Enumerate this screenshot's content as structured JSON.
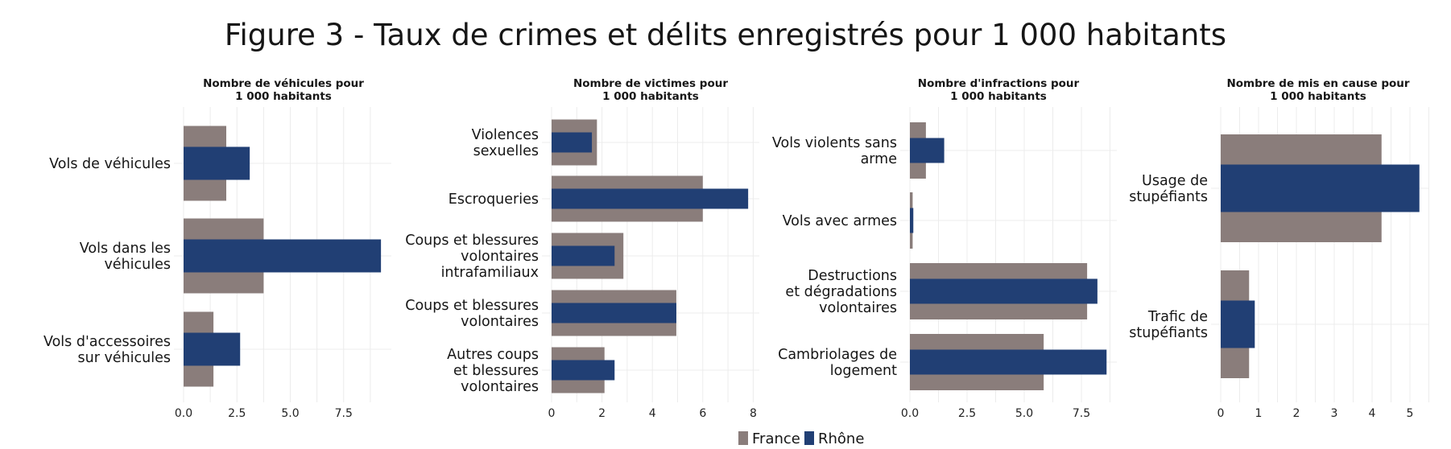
{
  "chart_data": {
    "type": "bar",
    "orientation": "horizontal",
    "title": "Figure 3 - Taux de crimes et délits enregistrés pour 1 000 habitants",
    "colors": {
      "France": "#8a7d7b",
      "Rhône": "#213f74"
    },
    "legend": {
      "position": "bottom",
      "entries": [
        "France",
        "Rhône"
      ]
    },
    "grid": true,
    "panels": [
      {
        "title": [
          "Nombre de véhicules pour",
          "1 000 habitants"
        ],
        "xlim": [
          0,
          9.75
        ],
        "ticks": [
          0,
          2.5,
          5,
          7.5
        ],
        "tick_labels": [
          "0.0",
          "2.5",
          "5.0",
          "7.5"
        ],
        "categories": [
          {
            "label": [
              "Vols de véhicules"
            ],
            "France": 2.0,
            "Rhône": 3.1
          },
          {
            "label": [
              "Vols dans les",
              "véhicules"
            ],
            "France": 3.75,
            "Rhône": 9.25
          },
          {
            "label": [
              "Vols d'accessoires",
              "sur véhicules"
            ],
            "France": 1.4,
            "Rhône": 2.65
          }
        ]
      },
      {
        "title": [
          "Nombre de victimes pour",
          "1 000 habitants"
        ],
        "xlim": [
          0,
          8.2
        ],
        "ticks": [
          0,
          2,
          4,
          6,
          8
        ],
        "tick_labels": [
          "0",
          "2",
          "4",
          "6",
          "8"
        ],
        "categories": [
          {
            "label": [
              "Violences",
              "sexuelles"
            ],
            "France": 1.8,
            "Rhône": 1.6
          },
          {
            "label": [
              "Escroqueries"
            ],
            "France": 6.0,
            "Rhône": 7.8
          },
          {
            "label": [
              "Coups et blessures",
              "volontaires",
              "intrafamiliaux"
            ],
            "France": 2.85,
            "Rhône": 2.5
          },
          {
            "label": [
              "Coups et blessures",
              "volontaires"
            ],
            "France": 4.95,
            "Rhône": 4.95
          },
          {
            "label": [
              "Autres coups",
              "et blessures",
              "volontaires"
            ],
            "France": 2.1,
            "Rhône": 2.5
          }
        ]
      },
      {
        "title": [
          "Nombre d'infractions pour",
          "1 000 habitants"
        ],
        "xlim": [
          0,
          9.0
        ],
        "ticks": [
          0,
          2.5,
          5,
          7.5
        ],
        "tick_labels": [
          "0.0",
          "2.5",
          "5.0",
          "7.5"
        ],
        "categories": [
          {
            "label": [
              "Vols violents sans",
              "arme"
            ],
            "France": 0.7,
            "Rhône": 1.5
          },
          {
            "label": [
              "Vols avec armes"
            ],
            "France": 0.12,
            "Rhône": 0.15
          },
          {
            "label": [
              "Destructions",
              "et dégradations",
              "volontaires"
            ],
            "France": 7.75,
            "Rhône": 8.2
          },
          {
            "label": [
              "Cambriolages de",
              "logement"
            ],
            "France": 5.85,
            "Rhône": 8.6
          }
        ]
      },
      {
        "title": [
          "Nombre de mis en cause pour",
          "1 000 habitants"
        ],
        "xlim": [
          0,
          5.5
        ],
        "ticks": [
          0,
          1,
          2,
          3,
          4,
          5
        ],
        "tick_labels": [
          "0",
          "1",
          "2",
          "3",
          "4",
          "5"
        ],
        "categories": [
          {
            "label": [
              "Usage de",
              "stupéfiants"
            ],
            "France": 4.25,
            "Rhône": 5.25
          },
          {
            "label": [
              "Trafic de",
              "stupéfiants"
            ],
            "France": 0.75,
            "Rhône": 0.9
          }
        ]
      }
    ]
  }
}
